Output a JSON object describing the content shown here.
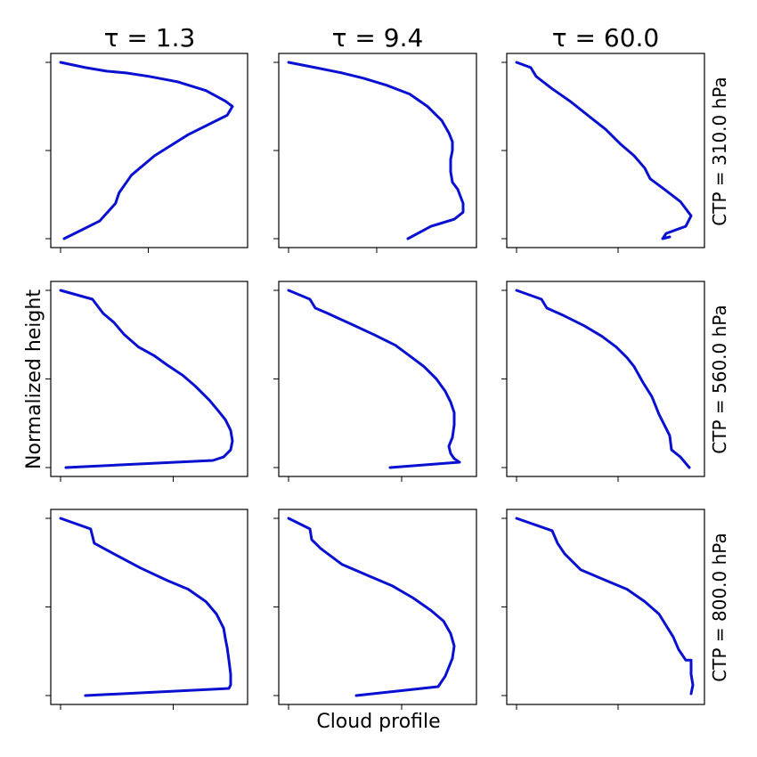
{
  "figure": {
    "xlabel": "Cloud profile",
    "ylabel": "Normalized height",
    "line_color": "#0a10d0",
    "column_titles": [
      "τ = 1.3",
      "τ = 9.4",
      "τ = 60.0"
    ],
    "row_labels": [
      "CTP = 310.0 hPa",
      "CTP = 560.0 hPa",
      "CTP = 800.0 hPa"
    ]
  },
  "chart_data": {
    "type": "line",
    "layout": "3x3 grid of small multiples",
    "xlabel": "Cloud profile",
    "ylabel": "Normalized height",
    "ylim": [
      0,
      1
    ],
    "y_ticks": [
      0,
      0.5,
      1
    ],
    "tick_labels_shown": false,
    "grid": false,
    "legend": "none",
    "panels": [
      {
        "row": 0,
        "col": 0,
        "tau": "1.3",
        "ctp": "310.0 hPa",
        "xlim": [
          0,
          1
        ],
        "x": [
          0.0,
          0.14,
          0.26,
          0.37,
          0.5,
          0.66,
          0.82,
          0.93,
          0.97,
          0.94,
          0.72,
          0.53,
          0.4,
          0.33,
          0.31,
          0.22,
          0.12,
          0.02
        ],
        "y": [
          1.0,
          0.97,
          0.95,
          0.94,
          0.92,
          0.89,
          0.84,
          0.78,
          0.75,
          0.7,
          0.59,
          0.47,
          0.36,
          0.26,
          0.2,
          0.1,
          0.05,
          0.0
        ]
      },
      {
        "row": 0,
        "col": 1,
        "tau": "9.4",
        "ctp": "310.0 hPa",
        "xlim": [
          0,
          1
        ],
        "x": [
          0.0,
          0.15,
          0.3,
          0.42,
          0.55,
          0.68,
          0.78,
          0.86,
          0.9,
          0.92,
          0.92,
          0.91,
          0.91,
          0.92,
          0.95,
          0.98,
          0.98,
          0.93,
          0.8,
          0.67
        ],
        "y": [
          1.0,
          0.97,
          0.94,
          0.91,
          0.87,
          0.82,
          0.75,
          0.67,
          0.6,
          0.55,
          0.5,
          0.45,
          0.38,
          0.32,
          0.28,
          0.2,
          0.15,
          0.11,
          0.07,
          0.0
        ]
      },
      {
        "row": 0,
        "col": 2,
        "tau": "60.0",
        "ctp": "310.0 hPa",
        "xlim": [
          0,
          1
        ],
        "x": [
          0.0,
          0.08,
          0.11,
          0.2,
          0.3,
          0.4,
          0.5,
          0.58,
          0.66,
          0.72,
          0.75,
          0.83,
          0.92,
          0.98,
          0.95,
          0.84,
          0.82,
          0.86
        ],
        "y": [
          1.0,
          0.97,
          0.92,
          0.85,
          0.78,
          0.7,
          0.62,
          0.54,
          0.47,
          0.4,
          0.34,
          0.28,
          0.21,
          0.13,
          0.07,
          0.03,
          0.0,
          0.01
        ]
      },
      {
        "row": 1,
        "col": 0,
        "tau": "1.3",
        "ctp": "560.0 hPa",
        "xlim": [
          0,
          1
        ],
        "x": [
          0.0,
          0.18,
          0.24,
          0.3,
          0.36,
          0.44,
          0.53,
          0.6,
          0.69,
          0.76,
          0.84,
          0.89,
          0.93,
          0.96,
          0.97,
          0.96,
          0.92,
          0.86,
          0.03
        ],
        "y": [
          1.0,
          0.95,
          0.87,
          0.82,
          0.75,
          0.68,
          0.63,
          0.58,
          0.52,
          0.46,
          0.38,
          0.32,
          0.27,
          0.21,
          0.15,
          0.1,
          0.06,
          0.04,
          0.0
        ]
      },
      {
        "row": 1,
        "col": 1,
        "tau": "9.4",
        "ctp": "560.0 hPa",
        "xlim": [
          0,
          1
        ],
        "x": [
          0.0,
          0.12,
          0.15,
          0.22,
          0.35,
          0.48,
          0.6,
          0.68,
          0.76,
          0.83,
          0.88,
          0.91,
          0.93,
          0.93,
          0.92,
          0.9,
          0.91,
          0.93,
          0.96,
          0.57
        ],
        "y": [
          1.0,
          0.95,
          0.9,
          0.87,
          0.81,
          0.75,
          0.69,
          0.63,
          0.57,
          0.5,
          0.43,
          0.37,
          0.31,
          0.24,
          0.17,
          0.12,
          0.08,
          0.05,
          0.03,
          0.0
        ]
      },
      {
        "row": 1,
        "col": 2,
        "tau": "60.0",
        "ctp": "560.0 hPa",
        "xlim": [
          0,
          1
        ],
        "x": [
          0.0,
          0.14,
          0.17,
          0.26,
          0.38,
          0.48,
          0.56,
          0.62,
          0.66,
          0.71,
          0.76,
          0.8,
          0.83,
          0.86,
          0.87,
          0.92,
          0.97
        ],
        "y": [
          1.0,
          0.95,
          0.9,
          0.86,
          0.8,
          0.74,
          0.68,
          0.62,
          0.57,
          0.48,
          0.4,
          0.3,
          0.24,
          0.18,
          0.1,
          0.06,
          0.0
        ]
      },
      {
        "row": 2,
        "col": 0,
        "tau": "1.3",
        "ctp": "800.0 hPa",
        "xlim": [
          0,
          1
        ],
        "x": [
          0.0,
          0.17,
          0.19,
          0.3,
          0.45,
          0.6,
          0.72,
          0.82,
          0.88,
          0.92,
          0.93,
          0.94,
          0.95,
          0.96,
          0.96,
          0.95,
          0.14
        ],
        "y": [
          1.0,
          0.94,
          0.86,
          0.8,
          0.72,
          0.65,
          0.6,
          0.53,
          0.46,
          0.38,
          0.32,
          0.27,
          0.2,
          0.12,
          0.06,
          0.04,
          0.0
        ]
      },
      {
        "row": 2,
        "col": 1,
        "tau": "9.4",
        "ctp": "800.0 hPa",
        "xlim": [
          0,
          1
        ],
        "x": [
          0.0,
          0.12,
          0.13,
          0.18,
          0.3,
          0.44,
          0.58,
          0.7,
          0.8,
          0.87,
          0.91,
          0.93,
          0.92,
          0.9,
          0.88,
          0.84,
          0.38
        ],
        "y": [
          1.0,
          0.94,
          0.88,
          0.83,
          0.74,
          0.68,
          0.62,
          0.55,
          0.48,
          0.42,
          0.35,
          0.28,
          0.21,
          0.16,
          0.11,
          0.05,
          0.0
        ]
      },
      {
        "row": 2,
        "col": 2,
        "tau": "60.0",
        "ctp": "800.0 hPa",
        "xlim": [
          0,
          1
        ],
        "x": [
          0.0,
          0.2,
          0.23,
          0.27,
          0.36,
          0.5,
          0.62,
          0.72,
          0.8,
          0.88,
          0.91,
          0.95,
          0.98,
          0.98,
          0.99,
          0.98
        ],
        "y": [
          1.0,
          0.93,
          0.86,
          0.8,
          0.71,
          0.65,
          0.6,
          0.53,
          0.46,
          0.33,
          0.26,
          0.2,
          0.2,
          0.12,
          0.06,
          0.01
        ]
      }
    ]
  }
}
